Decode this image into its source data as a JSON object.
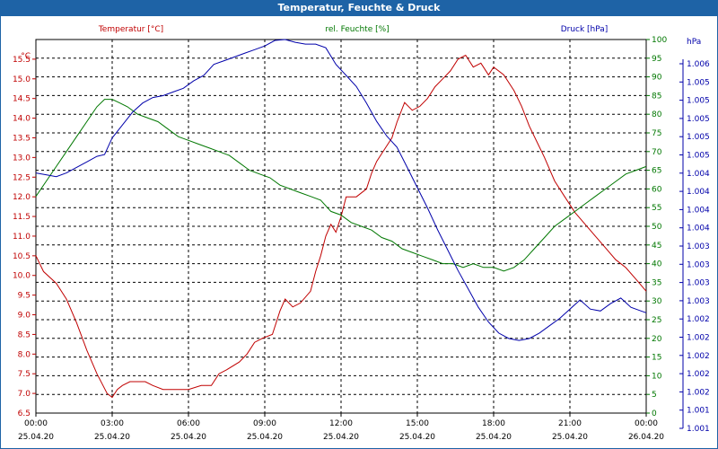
{
  "chart_data": {
    "type": "line",
    "title": "Temperatur, Feuchte & Druck",
    "grid": true,
    "x": {
      "range_hours": [
        0,
        24
      ],
      "ticks": [
        {
          "hour": 0,
          "time": "00:00",
          "date": "25.04.20"
        },
        {
          "hour": 3,
          "time": "03:00",
          "date": "25.04.20"
        },
        {
          "hour": 6,
          "time": "06:00",
          "date": "25.04.20"
        },
        {
          "hour": 9,
          "time": "09:00",
          "date": "25.04.20"
        },
        {
          "hour": 12,
          "time": "12:00",
          "date": "25.04.20"
        },
        {
          "hour": 15,
          "time": "15:00",
          "date": "25.04.20"
        },
        {
          "hour": 18,
          "time": "18:00",
          "date": "25.04.20"
        },
        {
          "hour": 21,
          "time": "21:00",
          "date": "25.04.20"
        },
        {
          "hour": 24,
          "time": "00:00",
          "date": "26.04.20"
        }
      ]
    },
    "axes": {
      "temperature": {
        "unit": "°C",
        "range": [
          6.5,
          16.0
        ],
        "ticks": [
          "7.0",
          "7.5",
          "8.0",
          "8.5",
          "9.0",
          "9.5",
          "10.0",
          "10.5",
          "11.0",
          "11.5",
          "12.0",
          "12.5",
          "13.0",
          "13.5",
          "14.0",
          "14.5",
          "15.0",
          "15.5"
        ],
        "bottom_label": "6.5",
        "color": "#c00000"
      },
      "humidity": {
        "unit": "%",
        "range": [
          0,
          100
        ],
        "ticks": [
          "0",
          "5",
          "10",
          "15",
          "20",
          "25",
          "30",
          "35",
          "40",
          "45",
          "50",
          "55",
          "60",
          "65",
          "70",
          "75",
          "80",
          "85",
          "90",
          "95",
          "100"
        ],
        "color": "#007700"
      },
      "pressure": {
        "unit": "hPa",
        "range": [
          1000.99,
          1005.05
        ],
        "ticks": [
          "1.001",
          "1.001",
          "1.002",
          "1.002",
          "1.002",
          "1.002",
          "1.002",
          "1.003",
          "1.003",
          "1.003",
          "1.003",
          "1.004",
          "1.004",
          "1.004",
          "1.004",
          "1.005",
          "1.005",
          "1.005",
          "1.005",
          "1.005",
          "1.006"
        ],
        "color": "#0000aa"
      }
    },
    "series": [
      {
        "name": "Temperatur [°C]",
        "axis": "temperature",
        "color": "#c00000",
        "points": [
          [
            0,
            10.5
          ],
          [
            0.3,
            10.1
          ],
          [
            0.8,
            9.8
          ],
          [
            1.2,
            9.4
          ],
          [
            1.6,
            8.8
          ],
          [
            2.0,
            8.1
          ],
          [
            2.4,
            7.5
          ],
          [
            2.8,
            7.0
          ],
          [
            3.0,
            6.9
          ],
          [
            3.2,
            7.1
          ],
          [
            3.4,
            7.2
          ],
          [
            3.7,
            7.3
          ],
          [
            4.0,
            7.3
          ],
          [
            4.3,
            7.3
          ],
          [
            4.6,
            7.2
          ],
          [
            5.0,
            7.1
          ],
          [
            5.3,
            7.1
          ],
          [
            5.6,
            7.1
          ],
          [
            6.0,
            7.1
          ],
          [
            6.5,
            7.2
          ],
          [
            6.9,
            7.2
          ],
          [
            7.2,
            7.5
          ],
          [
            7.5,
            7.6
          ],
          [
            8.0,
            7.8
          ],
          [
            8.3,
            8.0
          ],
          [
            8.6,
            8.3
          ],
          [
            8.9,
            8.4
          ],
          [
            9.3,
            8.5
          ],
          [
            9.6,
            9.1
          ],
          [
            9.8,
            9.4
          ],
          [
            10.1,
            9.2
          ],
          [
            10.4,
            9.3
          ],
          [
            10.8,
            9.6
          ],
          [
            11.0,
            10.1
          ],
          [
            11.2,
            10.5
          ],
          [
            11.4,
            11.0
          ],
          [
            11.6,
            11.3
          ],
          [
            11.8,
            11.1
          ],
          [
            12.0,
            11.5
          ],
          [
            12.2,
            12.0
          ],
          [
            12.6,
            12.0
          ],
          [
            13.0,
            12.2
          ],
          [
            13.2,
            12.6
          ],
          [
            13.4,
            12.9
          ],
          [
            13.7,
            13.2
          ],
          [
            14.0,
            13.5
          ],
          [
            14.2,
            13.9
          ],
          [
            14.5,
            14.4
          ],
          [
            14.8,
            14.2
          ],
          [
            15.1,
            14.3
          ],
          [
            15.4,
            14.5
          ],
          [
            15.7,
            14.8
          ],
          [
            16.0,
            15.0
          ],
          [
            16.3,
            15.2
          ],
          [
            16.6,
            15.5
          ],
          [
            16.9,
            15.6
          ],
          [
            17.2,
            15.3
          ],
          [
            17.5,
            15.4
          ],
          [
            17.8,
            15.1
          ],
          [
            18.0,
            15.3
          ],
          [
            18.4,
            15.1
          ],
          [
            18.8,
            14.7
          ],
          [
            19.1,
            14.3
          ],
          [
            19.4,
            13.8
          ],
          [
            19.7,
            13.4
          ],
          [
            20.0,
            13.0
          ],
          [
            20.4,
            12.4
          ],
          [
            20.8,
            12.0
          ],
          [
            21.2,
            11.6
          ],
          [
            21.6,
            11.3
          ],
          [
            22.0,
            11.0
          ],
          [
            22.4,
            10.7
          ],
          [
            22.8,
            10.4
          ],
          [
            23.2,
            10.2
          ],
          [
            23.6,
            9.9
          ],
          [
            24.0,
            9.6
          ]
        ]
      },
      {
        "name": "rel. Feuchte [%]",
        "axis": "humidity",
        "color": "#007700",
        "points": [
          [
            0,
            58
          ],
          [
            0.4,
            62
          ],
          [
            0.8,
            66
          ],
          [
            1.2,
            70
          ],
          [
            1.6,
            74
          ],
          [
            2.0,
            78
          ],
          [
            2.4,
            82
          ],
          [
            2.7,
            84
          ],
          [
            3.0,
            84
          ],
          [
            3.3,
            83
          ],
          [
            3.6,
            82
          ],
          [
            4.0,
            80
          ],
          [
            4.4,
            79
          ],
          [
            4.8,
            78
          ],
          [
            5.2,
            76
          ],
          [
            5.6,
            74
          ],
          [
            6.0,
            73
          ],
          [
            6.4,
            72
          ],
          [
            6.8,
            71
          ],
          [
            7.2,
            70
          ],
          [
            7.6,
            69
          ],
          [
            8.0,
            67
          ],
          [
            8.4,
            65
          ],
          [
            8.8,
            64
          ],
          [
            9.2,
            63
          ],
          [
            9.6,
            61
          ],
          [
            10.0,
            60
          ],
          [
            10.4,
            59
          ],
          [
            10.8,
            58
          ],
          [
            11.2,
            57
          ],
          [
            11.6,
            54
          ],
          [
            12.0,
            53
          ],
          [
            12.4,
            51
          ],
          [
            12.8,
            50
          ],
          [
            13.2,
            49
          ],
          [
            13.6,
            47
          ],
          [
            14.0,
            46
          ],
          [
            14.4,
            44
          ],
          [
            14.8,
            43
          ],
          [
            15.2,
            42
          ],
          [
            15.6,
            41
          ],
          [
            16.0,
            40
          ],
          [
            16.4,
            40
          ],
          [
            16.8,
            39
          ],
          [
            17.2,
            40
          ],
          [
            17.6,
            39
          ],
          [
            18.0,
            39
          ],
          [
            18.4,
            38
          ],
          [
            18.8,
            39
          ],
          [
            19.2,
            41
          ],
          [
            19.6,
            44
          ],
          [
            20.0,
            47
          ],
          [
            20.4,
            50
          ],
          [
            20.8,
            52
          ],
          [
            21.2,
            54
          ],
          [
            21.6,
            56
          ],
          [
            22.0,
            58
          ],
          [
            22.4,
            60
          ],
          [
            22.8,
            62
          ],
          [
            23.2,
            64
          ],
          [
            23.6,
            65
          ],
          [
            24.0,
            66
          ]
        ]
      },
      {
        "name": "Druck [hPa]",
        "axis": "pressure",
        "color": "#0000aa",
        "points": [
          [
            0,
            1003.6
          ],
          [
            0.4,
            1003.58
          ],
          [
            0.8,
            1003.56
          ],
          [
            1.2,
            1003.6
          ],
          [
            1.6,
            1003.66
          ],
          [
            2.0,
            1003.72
          ],
          [
            2.4,
            1003.78
          ],
          [
            2.7,
            1003.8
          ],
          [
            3.0,
            1003.98
          ],
          [
            3.4,
            1004.12
          ],
          [
            3.8,
            1004.26
          ],
          [
            4.2,
            1004.36
          ],
          [
            4.6,
            1004.42
          ],
          [
            5.0,
            1004.44
          ],
          [
            5.4,
            1004.48
          ],
          [
            5.8,
            1004.52
          ],
          [
            6.2,
            1004.6
          ],
          [
            6.6,
            1004.66
          ],
          [
            7.0,
            1004.78
          ],
          [
            7.4,
            1004.82
          ],
          [
            7.8,
            1004.86
          ],
          [
            8.2,
            1004.9
          ],
          [
            8.6,
            1004.94
          ],
          [
            9.0,
            1004.98
          ],
          [
            9.4,
            1005.04
          ],
          [
            9.8,
            1005.05
          ],
          [
            10.2,
            1005.02
          ],
          [
            10.6,
            1005.0
          ],
          [
            11.0,
            1005.0
          ],
          [
            11.4,
            1004.96
          ],
          [
            11.8,
            1004.78
          ],
          [
            12.2,
            1004.66
          ],
          [
            12.6,
            1004.54
          ],
          [
            13.0,
            1004.36
          ],
          [
            13.4,
            1004.16
          ],
          [
            13.8,
            1004.0
          ],
          [
            14.2,
            1003.88
          ],
          [
            14.6,
            1003.66
          ],
          [
            15.0,
            1003.44
          ],
          [
            15.4,
            1003.22
          ],
          [
            15.8,
            1002.98
          ],
          [
            16.2,
            1002.76
          ],
          [
            16.6,
            1002.54
          ],
          [
            17.0,
            1002.34
          ],
          [
            17.4,
            1002.14
          ],
          [
            17.8,
            1001.98
          ],
          [
            18.2,
            1001.86
          ],
          [
            18.6,
            1001.8
          ],
          [
            19.0,
            1001.78
          ],
          [
            19.4,
            1001.8
          ],
          [
            19.8,
            1001.86
          ],
          [
            20.2,
            1001.94
          ],
          [
            20.6,
            1002.02
          ],
          [
            21.0,
            1002.12
          ],
          [
            21.4,
            1002.22
          ],
          [
            21.8,
            1002.12
          ],
          [
            22.2,
            1002.1
          ],
          [
            22.6,
            1002.18
          ],
          [
            23.0,
            1002.24
          ],
          [
            23.4,
            1002.14
          ],
          [
            23.8,
            1002.1
          ],
          [
            24.0,
            1002.08
          ]
        ]
      }
    ]
  }
}
